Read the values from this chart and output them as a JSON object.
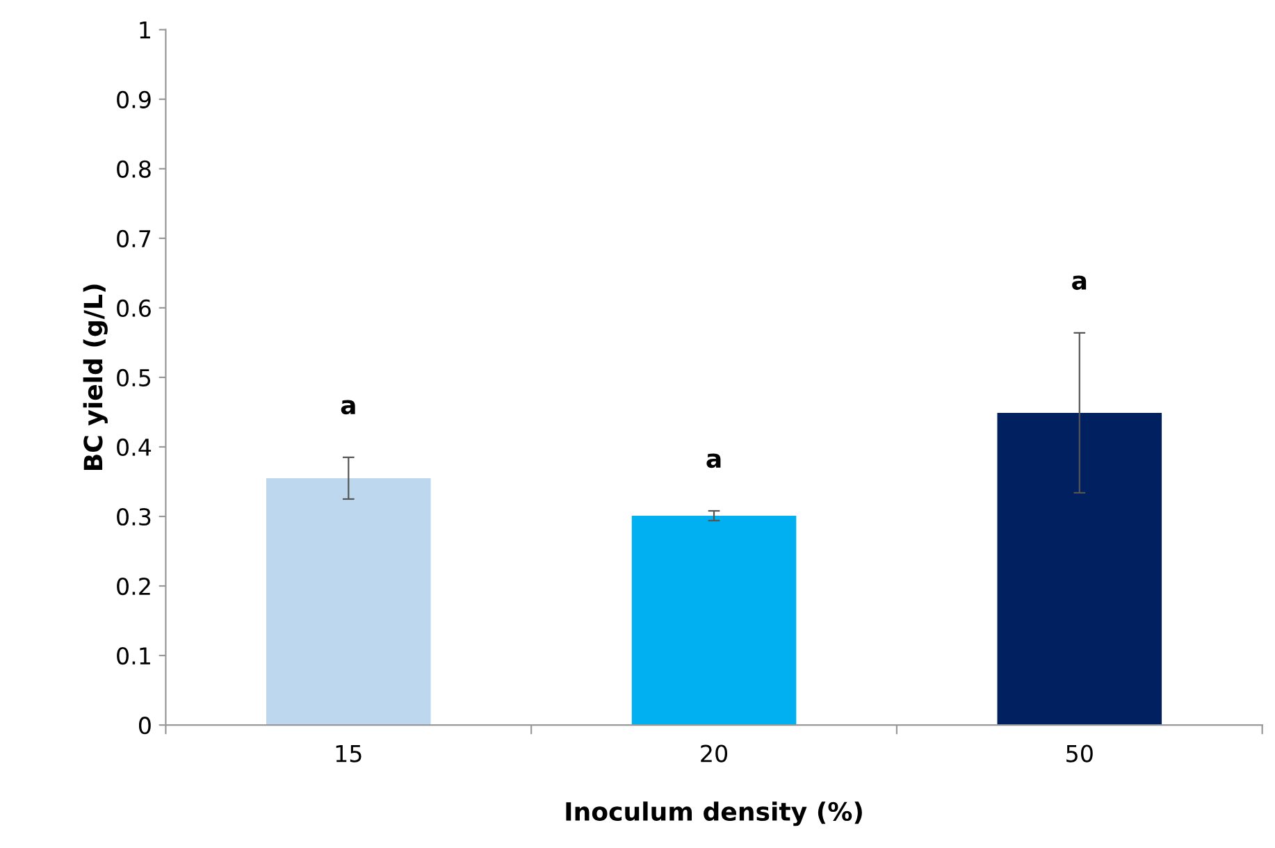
{
  "chart_data": {
    "type": "bar",
    "xlabel": "Inoculum density (%)",
    "ylabel": "BC yield (g/L)",
    "categories": [
      "15",
      "20",
      "50"
    ],
    "values": [
      0.355,
      0.301,
      0.449
    ],
    "colors": [
      "#bdd7ee",
      "#00b0f0",
      "#002060"
    ],
    "errors": [
      0.03,
      0.007,
      0.115
    ],
    "ylim": [
      0,
      1
    ],
    "yticks": [
      0,
      0.1,
      0.2,
      0.3,
      0.4,
      0.5,
      0.6,
      0.7,
      0.8,
      0.9,
      1
    ],
    "grid": false,
    "legend": false,
    "annotations": [
      "a",
      "a",
      "a"
    ]
  }
}
